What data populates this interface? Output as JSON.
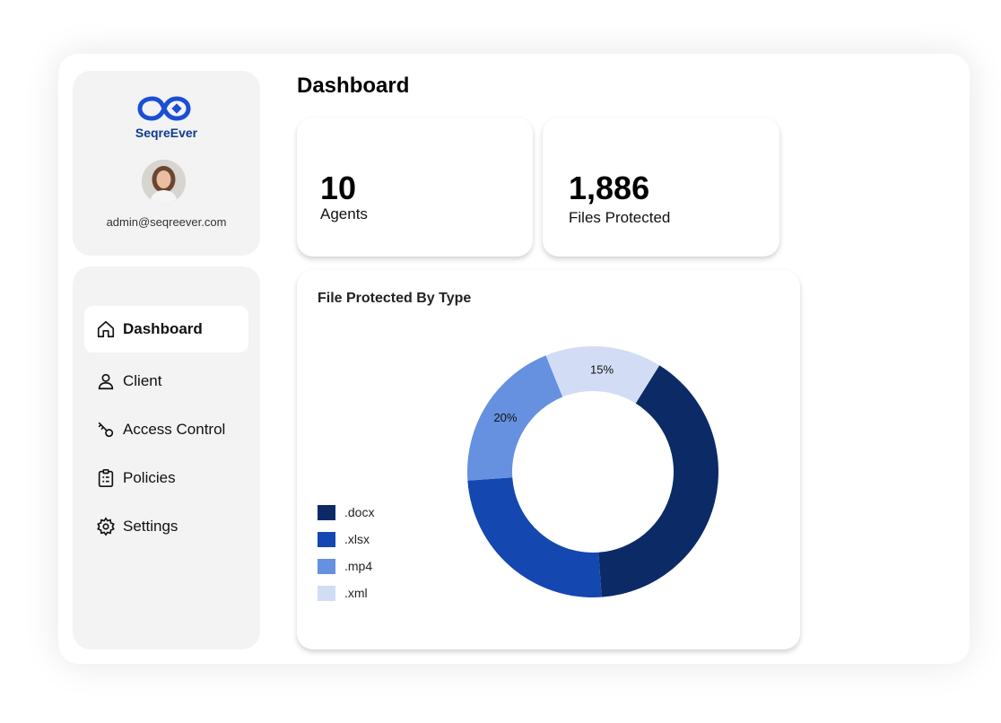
{
  "brand": {
    "name": "SeqreEver",
    "color": "#1a4fd6"
  },
  "profile": {
    "email": "admin@seqreever.com"
  },
  "sidebar": {
    "items": [
      {
        "label": "Dashboard",
        "icon": "home-icon",
        "active": true
      },
      {
        "label": "Client",
        "icon": "user-icon",
        "active": false
      },
      {
        "label": "Access Control",
        "icon": "key-icon",
        "active": false
      },
      {
        "label": "Policies",
        "icon": "clipboard-icon",
        "active": false
      },
      {
        "label": "Settings",
        "icon": "gear-icon",
        "active": false
      }
    ]
  },
  "page": {
    "title": "Dashboard"
  },
  "stats": [
    {
      "value": "10",
      "label": "Agents"
    },
    {
      "value": "1,886",
      "label": "Files Protected"
    }
  ],
  "chart_data": {
    "type": "pie",
    "title": "File Protected By Type",
    "categories": [
      ".docx",
      ".xlsx",
      ".mp4",
      ".xml"
    ],
    "values": [
      40,
      25,
      20,
      15
    ],
    "data_labels": [
      "",
      "",
      "20%",
      "15%"
    ],
    "colors": [
      "#0c2a66",
      "#1447b0",
      "#6690e0",
      "#d2ddf5"
    ],
    "donut": true,
    "legend": "left"
  }
}
